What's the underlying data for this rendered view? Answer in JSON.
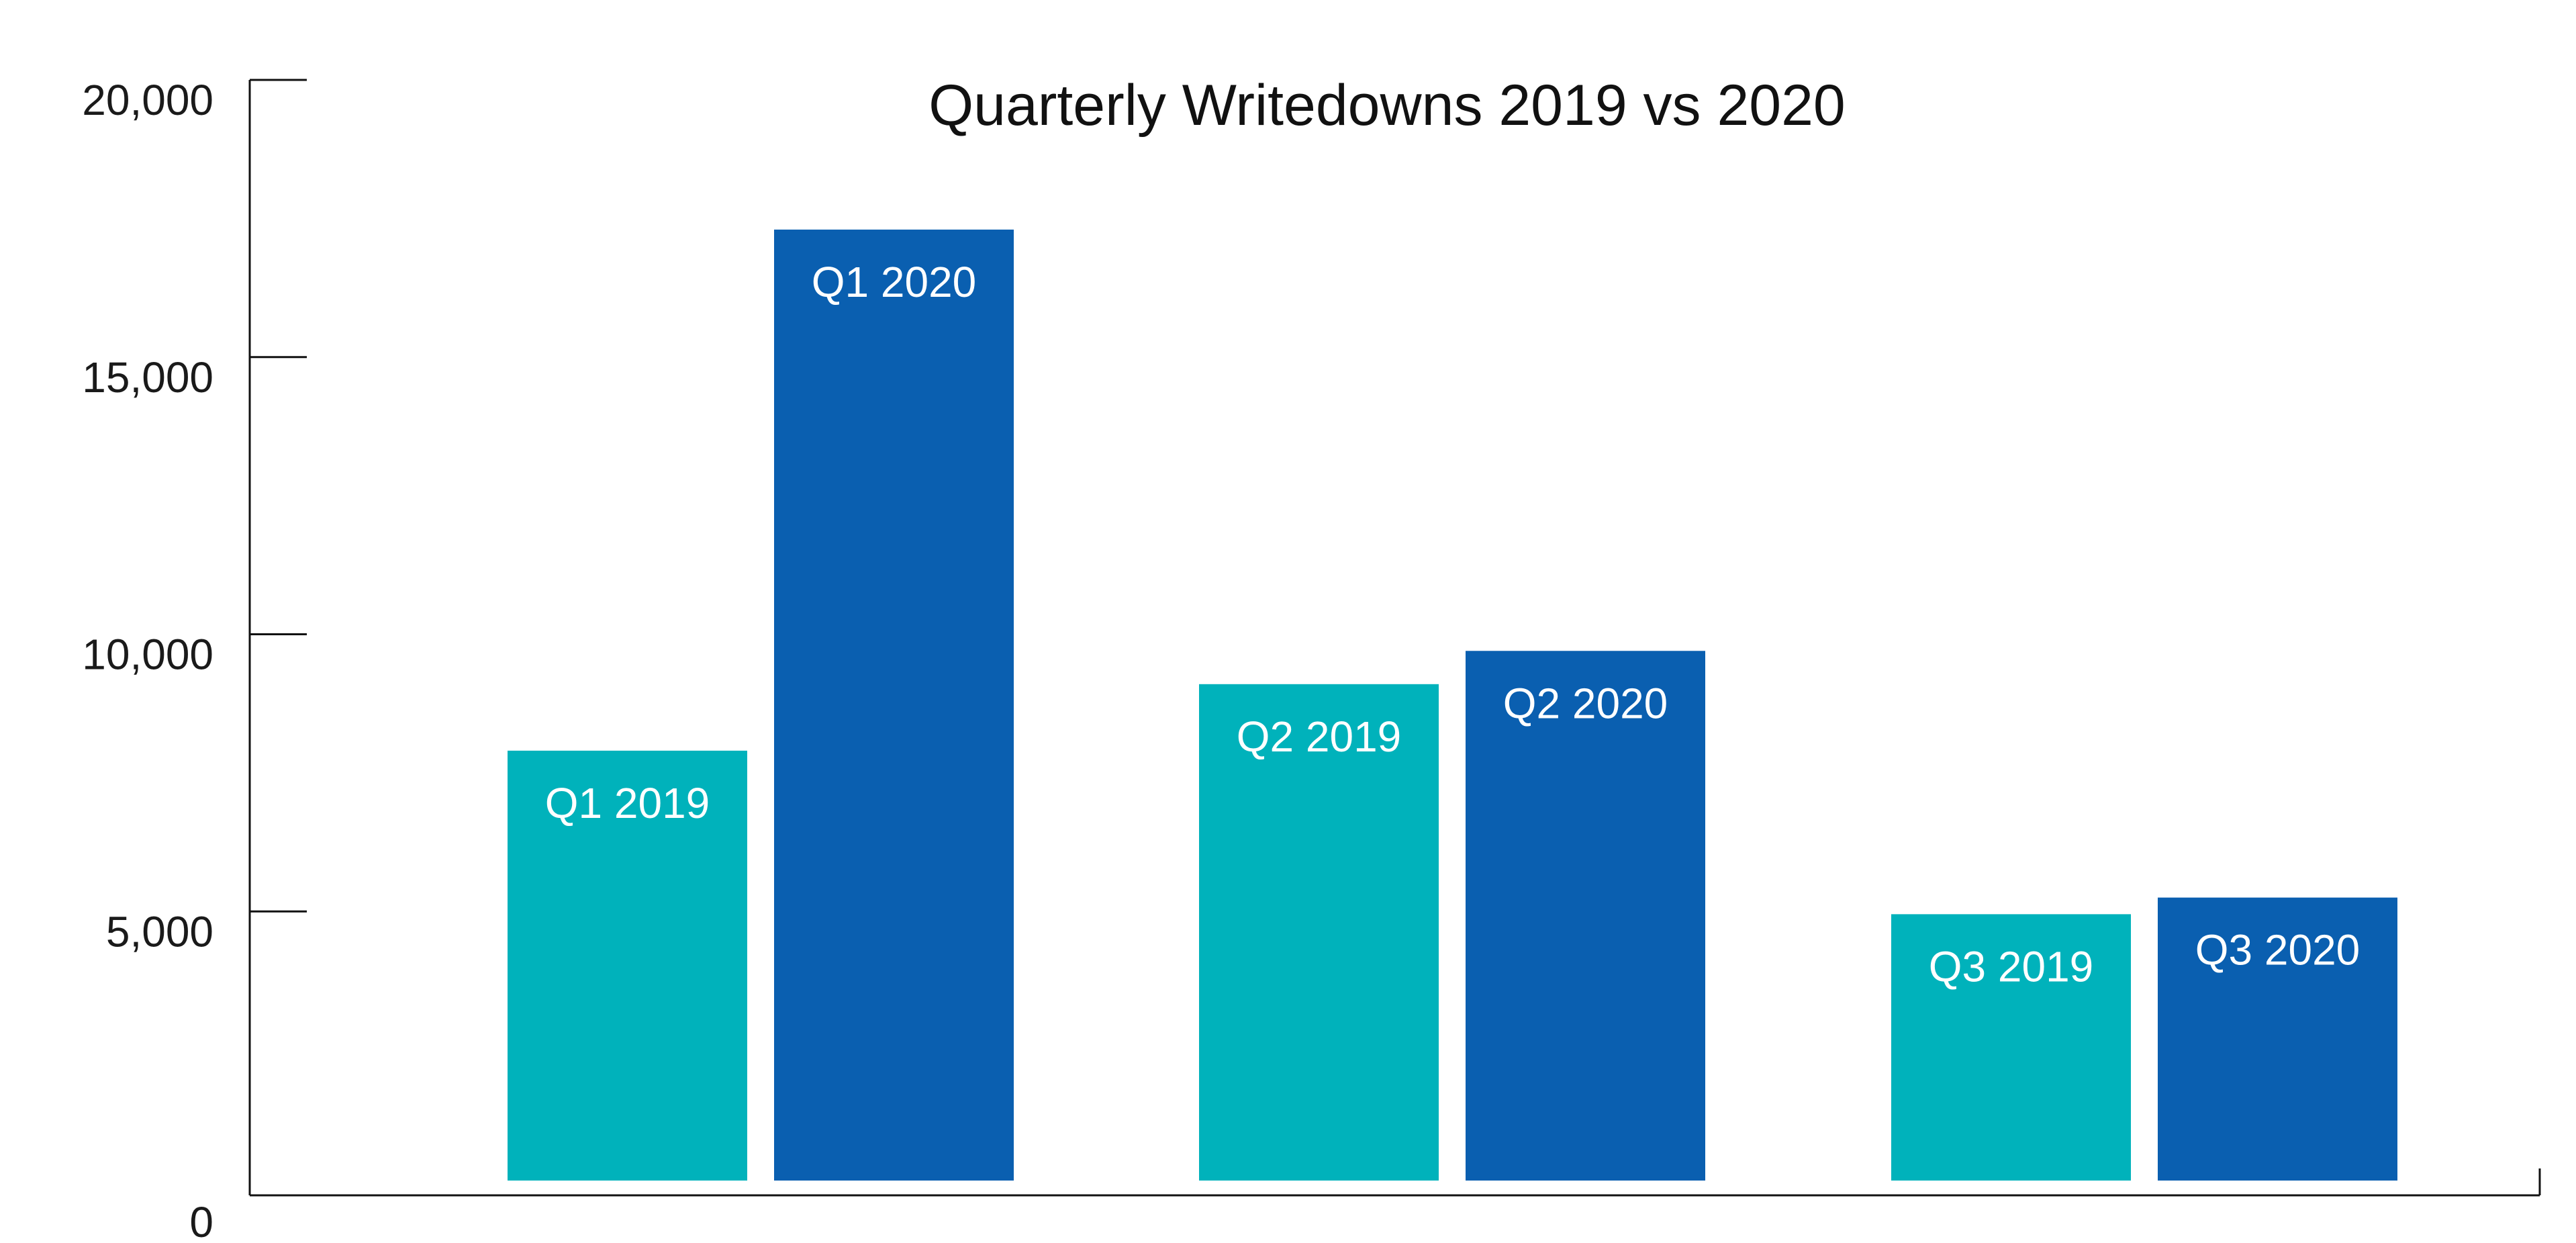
{
  "chart_data": {
    "type": "bar",
    "title": "Quarterly Writedowns 2019 vs 2020",
    "xlabel": "",
    "ylabel": "",
    "ylim": [
      0,
      20000
    ],
    "yticks": [
      0,
      5000,
      10000,
      15000,
      20000
    ],
    "ytick_labels": [
      "0",
      "5,000",
      "10,000",
      "15,000",
      "20,000"
    ],
    "grid": false,
    "legend": "none",
    "categories": [
      "Q1",
      "Q2",
      "Q3"
    ],
    "bars": [
      {
        "label": "Q1 2019",
        "value": 7900,
        "color": "#00B2BB"
      },
      {
        "label": "Q1 2020",
        "value": 17300,
        "color": "#0A5FB0"
      },
      {
        "label": "Q2 2019",
        "value": 9100,
        "color": "#00B2BB"
      },
      {
        "label": "Q2 2020",
        "value": 9700,
        "color": "#0A5FB0"
      },
      {
        "label": "Q3 2019",
        "value": 4950,
        "color": "#00B2BB"
      },
      {
        "label": "Q3 2020",
        "value": 5250,
        "color": "#0A5FB0"
      }
    ]
  }
}
